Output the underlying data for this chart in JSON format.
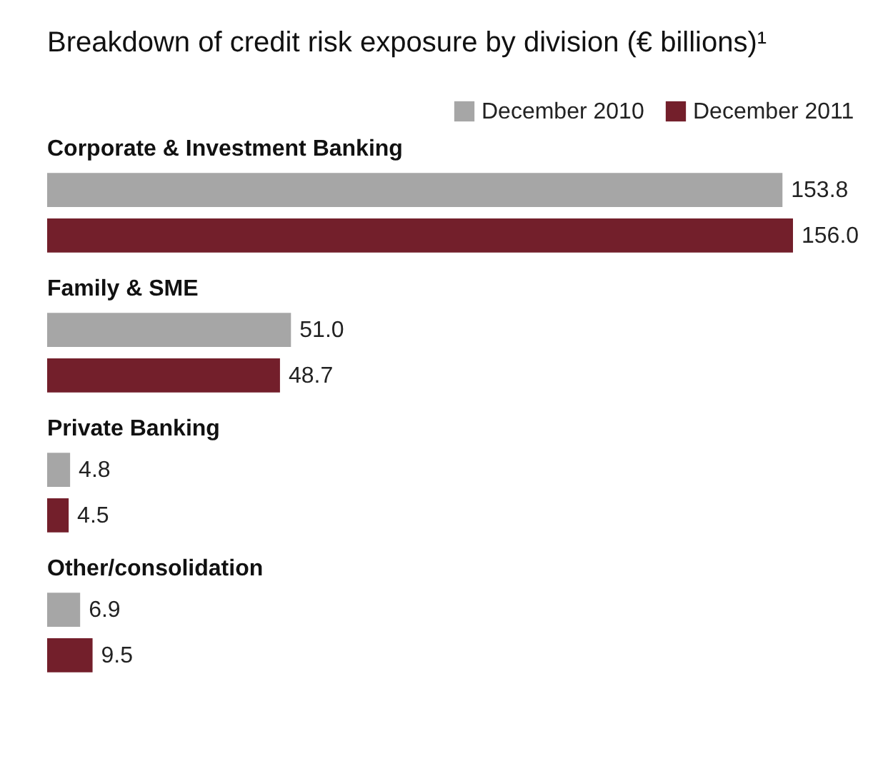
{
  "chart_data": {
    "type": "bar",
    "orientation": "horizontal",
    "title": "Breakdown of credit risk exposure by division (€ billions)¹",
    "categories": [
      "Corporate & Investment Banking",
      "Family & SME",
      "Private Banking",
      "Other/consolidation"
    ],
    "series": [
      {
        "name": "December 2010",
        "color": "#a6a6a6",
        "values": [
          153.8,
          51.0,
          4.8,
          6.9
        ],
        "value_labels": [
          "153.8",
          "51.0",
          "4.8",
          "6.9"
        ]
      },
      {
        "name": "December 2011",
        "color": "#731f2b",
        "values": [
          156.0,
          48.7,
          4.5,
          9.5
        ],
        "value_labels": [
          "156.0",
          "48.7",
          "4.5",
          "9.5"
        ]
      }
    ],
    "legend": "top right",
    "grid": false
  }
}
